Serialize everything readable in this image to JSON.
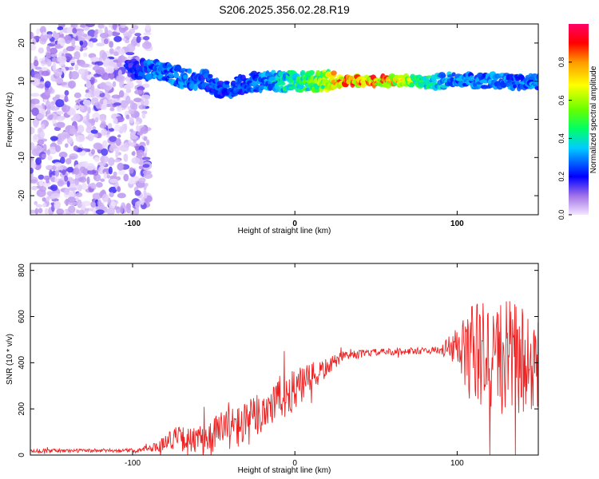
{
  "title": "S206.2025.356.02.28.R19",
  "charts": [
    {
      "type": "heatmap",
      "xlabel": "Height of straight line (km)",
      "ylabel": "Frequency (Hz)",
      "xlim": [
        -163,
        150
      ],
      "ylim": [
        -25,
        25
      ],
      "xticks": [
        -100,
        0,
        100
      ],
      "yticks": [
        -20,
        -10,
        0,
        10,
        20
      ],
      "colorbar": {
        "label": "Normalized spectral amplitude",
        "range": [
          0,
          1
        ],
        "ticks": [
          0.0,
          0.2,
          0.4,
          0.6,
          0.8
        ],
        "tick_labels": [
          "0.0",
          "0.2",
          "0.4",
          "0.6",
          "0.8"
        ]
      },
      "features": [
        {
          "name": "noise",
          "x_range": [
            -163,
            -90
          ],
          "y_range": [
            -25,
            25
          ],
          "amplitude": 0.12
        },
        {
          "name": "signal-band",
          "points": [
            {
              "x": -100,
              "y": 13,
              "amp": 0.25
            },
            {
              "x": -85,
              "y": 13,
              "amp": 0.35
            },
            {
              "x": -70,
              "y": 11,
              "amp": 0.35
            },
            {
              "x": -55,
              "y": 10,
              "amp": 0.3
            },
            {
              "x": -45,
              "y": 7,
              "amp": 0.3
            },
            {
              "x": -35,
              "y": 9,
              "amp": 0.3
            },
            {
              "x": -20,
              "y": 10,
              "amp": 0.35
            },
            {
              "x": -10,
              "y": 10,
              "amp": 0.45
            },
            {
              "x": 0,
              "y": 10,
              "amp": 0.5
            },
            {
              "x": 10,
              "y": 10,
              "amp": 0.6
            },
            {
              "x": 20,
              "y": 10,
              "amp": 0.75
            },
            {
              "x": 30,
              "y": 10,
              "amp": 0.95
            },
            {
              "x": 45,
              "y": 10,
              "amp": 1.0
            },
            {
              "x": 60,
              "y": 10,
              "amp": 0.9
            },
            {
              "x": 75,
              "y": 10,
              "amp": 0.6
            },
            {
              "x": 90,
              "y": 10,
              "amp": 0.45
            },
            {
              "x": 105,
              "y": 10,
              "amp": 0.35
            },
            {
              "x": 120,
              "y": 10,
              "amp": 0.35
            },
            {
              "x": 135,
              "y": 10,
              "amp": 0.35
            },
            {
              "x": 150,
              "y": 10,
              "amp": 0.35
            }
          ]
        }
      ]
    },
    {
      "type": "line",
      "xlabel": "Height of straight line (km)",
      "ylabel": "SNR (10 * v/v)",
      "xlim": [
        -163,
        150
      ],
      "ylim": [
        0,
        830
      ],
      "xticks": [
        -100,
        0,
        100
      ],
      "yticks": [
        0,
        200,
        400,
        600,
        800
      ],
      "color": "#ee2222",
      "envelope": [
        {
          "x": -163,
          "mean": 18,
          "spread": 8
        },
        {
          "x": -100,
          "mean": 20,
          "spread": 8
        },
        {
          "x": -85,
          "mean": 35,
          "spread": 20
        },
        {
          "x": -75,
          "mean": 75,
          "spread": 50
        },
        {
          "x": -60,
          "mean": 60,
          "spread": 60
        },
        {
          "x": -45,
          "mean": 110,
          "spread": 90
        },
        {
          "x": -30,
          "mean": 130,
          "spread": 100
        },
        {
          "x": -15,
          "mean": 220,
          "spread": 110
        },
        {
          "x": 0,
          "mean": 280,
          "spread": 90
        },
        {
          "x": 10,
          "mean": 330,
          "spread": 70
        },
        {
          "x": 20,
          "mean": 380,
          "spread": 40
        },
        {
          "x": 30,
          "mean": 430,
          "spread": 20
        },
        {
          "x": 50,
          "mean": 445,
          "spread": 15
        },
        {
          "x": 70,
          "mean": 450,
          "spread": 15
        },
        {
          "x": 90,
          "mean": 455,
          "spread": 15
        },
        {
          "x": 95,
          "mean": 460,
          "spread": 60
        },
        {
          "x": 110,
          "mean": 440,
          "spread": 230
        },
        {
          "x": 130,
          "mean": 420,
          "spread": 260
        },
        {
          "x": 150,
          "mean": 400,
          "spread": 230
        }
      ]
    }
  ]
}
